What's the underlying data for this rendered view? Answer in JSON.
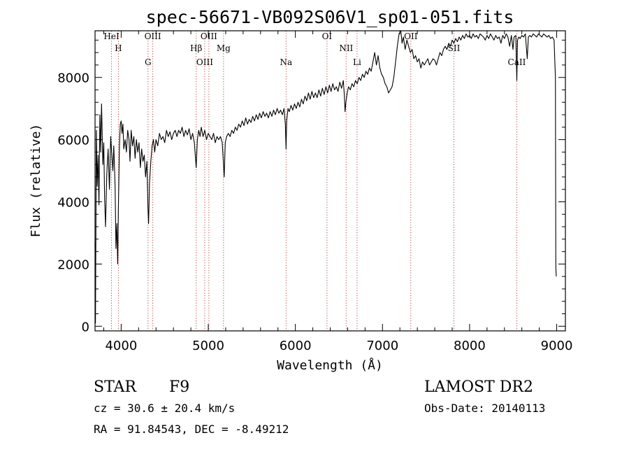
{
  "chart_data": {
    "type": "line",
    "title": "spec-56671-VB092S06V1_sp01-051.fits",
    "xlabel": "Wavelength (Å)",
    "ylabel": "Flux (relative)",
    "xlim": [
      3700,
      9100
    ],
    "ylim": [
      -150,
      9500
    ],
    "xticks": [
      4000,
      5000,
      6000,
      7000,
      8000,
      9000
    ],
    "yticks": [
      0,
      2000,
      4000,
      6000,
      8000
    ],
    "grid": false,
    "series": [
      {
        "points": [
          [
            3700,
            2700
          ],
          [
            3705,
            100
          ],
          [
            3715,
            6300
          ],
          [
            3725,
            4500
          ],
          [
            3735,
            5500
          ],
          [
            3745,
            3900
          ],
          [
            3755,
            6800
          ],
          [
            3765,
            5600
          ],
          [
            3775,
            7150
          ],
          [
            3790,
            5200
          ],
          [
            3800,
            5900
          ],
          [
            3810,
            4100
          ],
          [
            3820,
            3200
          ],
          [
            3835,
            4900
          ],
          [
            3850,
            5700
          ],
          [
            3865,
            4400
          ],
          [
            3880,
            6100
          ],
          [
            3895,
            5400
          ],
          [
            3905,
            5000
          ],
          [
            3915,
            5800
          ],
          [
            3930,
            4500
          ],
          [
            3940,
            2500
          ],
          [
            3950,
            3300
          ],
          [
            3960,
            2000
          ],
          [
            3968,
            3800
          ],
          [
            3980,
            5800
          ],
          [
            3990,
            6500
          ],
          [
            4000,
            6600
          ],
          [
            4010,
            6200
          ],
          [
            4020,
            6500
          ],
          [
            4030,
            5700
          ],
          [
            4045,
            6000
          ],
          [
            4060,
            5600
          ],
          [
            4075,
            6300
          ],
          [
            4090,
            6000
          ],
          [
            4101,
            5300
          ],
          [
            4115,
            6300
          ],
          [
            4130,
            5800
          ],
          [
            4145,
            6100
          ],
          [
            4160,
            5400
          ],
          [
            4175,
            6000
          ],
          [
            4190,
            5600
          ],
          [
            4205,
            5900
          ],
          [
            4220,
            5100
          ],
          [
            4235,
            5700
          ],
          [
            4250,
            5300
          ],
          [
            4265,
            5500
          ],
          [
            4280,
            4800
          ],
          [
            4295,
            5300
          ],
          [
            4307,
            3800
          ],
          [
            4315,
            3300
          ],
          [
            4325,
            4600
          ],
          [
            4340,
            5300
          ],
          [
            4355,
            5800
          ],
          [
            4370,
            6000
          ],
          [
            4385,
            5600
          ],
          [
            4400,
            6000
          ],
          [
            4420,
            5800
          ],
          [
            4440,
            6200
          ],
          [
            4460,
            6000
          ],
          [
            4480,
            6100
          ],
          [
            4500,
            5900
          ],
          [
            4520,
            6300
          ],
          [
            4540,
            6100
          ],
          [
            4560,
            6250
          ],
          [
            4580,
            6000
          ],
          [
            4600,
            6200
          ],
          [
            4620,
            6300
          ],
          [
            4640,
            6100
          ],
          [
            4660,
            6300
          ],
          [
            4680,
            6200
          ],
          [
            4700,
            6400
          ],
          [
            4720,
            6100
          ],
          [
            4740,
            6300
          ],
          [
            4760,
            6150
          ],
          [
            4780,
            6350
          ],
          [
            4800,
            6000
          ],
          [
            4820,
            6200
          ],
          [
            4840,
            5900
          ],
          [
            4861,
            5100
          ],
          [
            4875,
            6000
          ],
          [
            4890,
            6300
          ],
          [
            4905,
            6100
          ],
          [
            4920,
            6400
          ],
          [
            4940,
            6100
          ],
          [
            4960,
            6300
          ],
          [
            4980,
            6000
          ],
          [
            5000,
            6200
          ],
          [
            5020,
            6100
          ],
          [
            5040,
            6000
          ],
          [
            5060,
            6200
          ],
          [
            5080,
            5900
          ],
          [
            5100,
            6100
          ],
          [
            5120,
            6000
          ],
          [
            5140,
            6100
          ],
          [
            5160,
            5900
          ],
          [
            5175,
            5200
          ],
          [
            5183,
            4800
          ],
          [
            5195,
            5900
          ],
          [
            5210,
            6100
          ],
          [
            5230,
            6200
          ],
          [
            5250,
            6100
          ],
          [
            5270,
            6300
          ],
          [
            5290,
            6200
          ],
          [
            5310,
            6400
          ],
          [
            5330,
            6300
          ],
          [
            5350,
            6500
          ],
          [
            5370,
            6400
          ],
          [
            5390,
            6600
          ],
          [
            5410,
            6450
          ],
          [
            5430,
            6700
          ],
          [
            5450,
            6500
          ],
          [
            5470,
            6650
          ],
          [
            5490,
            6550
          ],
          [
            5510,
            6750
          ],
          [
            5530,
            6600
          ],
          [
            5550,
            6800
          ],
          [
            5570,
            6650
          ],
          [
            5590,
            6850
          ],
          [
            5610,
            6700
          ],
          [
            5630,
            6900
          ],
          [
            5650,
            6750
          ],
          [
            5670,
            6850
          ],
          [
            5690,
            6700
          ],
          [
            5710,
            6900
          ],
          [
            5730,
            6750
          ],
          [
            5750,
            6950
          ],
          [
            5770,
            6800
          ],
          [
            5790,
            7000
          ],
          [
            5810,
            6850
          ],
          [
            5830,
            6950
          ],
          [
            5850,
            6800
          ],
          [
            5870,
            7000
          ],
          [
            5885,
            6500
          ],
          [
            5893,
            5700
          ],
          [
            5900,
            6600
          ],
          [
            5915,
            7000
          ],
          [
            5930,
            6900
          ],
          [
            5950,
            7100
          ],
          [
            5970,
            6950
          ],
          [
            5990,
            7150
          ],
          [
            6010,
            7000
          ],
          [
            6030,
            7200
          ],
          [
            6050,
            7050
          ],
          [
            6070,
            7300
          ],
          [
            6090,
            7150
          ],
          [
            6110,
            7400
          ],
          [
            6130,
            7250
          ],
          [
            6150,
            7500
          ],
          [
            6170,
            7300
          ],
          [
            6190,
            7550
          ],
          [
            6210,
            7350
          ],
          [
            6230,
            7500
          ],
          [
            6250,
            7350
          ],
          [
            6270,
            7600
          ],
          [
            6290,
            7400
          ],
          [
            6310,
            7650
          ],
          [
            6330,
            7450
          ],
          [
            6350,
            7700
          ],
          [
            6370,
            7500
          ],
          [
            6390,
            7750
          ],
          [
            6410,
            7550
          ],
          [
            6430,
            7800
          ],
          [
            6450,
            7600
          ],
          [
            6470,
            7700
          ],
          [
            6490,
            7550
          ],
          [
            6510,
            7850
          ],
          [
            6530,
            7650
          ],
          [
            6550,
            7900
          ],
          [
            6563,
            7400
          ],
          [
            6570,
            6900
          ],
          [
            6580,
            7200
          ],
          [
            6595,
            7500
          ],
          [
            6610,
            7700
          ],
          [
            6630,
            7600
          ],
          [
            6650,
            7800
          ],
          [
            6670,
            7700
          ],
          [
            6690,
            7900
          ],
          [
            6710,
            7800
          ],
          [
            6730,
            8000
          ],
          [
            6750,
            7900
          ],
          [
            6770,
            8100
          ],
          [
            6790,
            8000
          ],
          [
            6810,
            8200
          ],
          [
            6830,
            8100
          ],
          [
            6850,
            8300
          ],
          [
            6870,
            8200
          ],
          [
            6890,
            8500
          ],
          [
            6910,
            8800
          ],
          [
            6930,
            8400
          ],
          [
            6950,
            8700
          ],
          [
            6970,
            8300
          ],
          [
            6990,
            8100
          ],
          [
            7010,
            8000
          ],
          [
            7030,
            7800
          ],
          [
            7050,
            7700
          ],
          [
            7070,
            7500
          ],
          [
            7090,
            7600
          ],
          [
            7110,
            7700
          ],
          [
            7130,
            8000
          ],
          [
            7150,
            8500
          ],
          [
            7170,
            9000
          ],
          [
            7190,
            9400
          ],
          [
            7210,
            9500
          ],
          [
            7225,
            9100
          ],
          [
            7240,
            9300
          ],
          [
            7260,
            8900
          ],
          [
            7280,
            9200
          ],
          [
            7300,
            9000
          ],
          [
            7320,
            8800
          ],
          [
            7340,
            8900
          ],
          [
            7360,
            8600
          ],
          [
            7380,
            8700
          ],
          [
            7400,
            8500
          ],
          [
            7420,
            8600
          ],
          [
            7440,
            8300
          ],
          [
            7460,
            8500
          ],
          [
            7480,
            8400
          ],
          [
            7500,
            8500
          ],
          [
            7520,
            8600
          ],
          [
            7540,
            8400
          ],
          [
            7560,
            8500
          ],
          [
            7580,
            8600
          ],
          [
            7600,
            8550
          ],
          [
            7620,
            8400
          ],
          [
            7640,
            8600
          ],
          [
            7660,
            8800
          ],
          [
            7680,
            8700
          ],
          [
            7700,
            8900
          ],
          [
            7720,
            9000
          ],
          [
            7740,
            8900
          ],
          [
            7760,
            9100
          ],
          [
            7780,
            9000
          ],
          [
            7800,
            9200
          ],
          [
            7820,
            9100
          ],
          [
            7840,
            9250
          ],
          [
            7860,
            9150
          ],
          [
            7880,
            9300
          ],
          [
            7900,
            9200
          ],
          [
            7920,
            9350
          ],
          [
            7940,
            9250
          ],
          [
            7960,
            9400
          ],
          [
            7980,
            9300
          ],
          [
            8000,
            9350
          ],
          [
            8020,
            9250
          ],
          [
            8040,
            9400
          ],
          [
            8060,
            9300
          ],
          [
            8080,
            9350
          ],
          [
            8100,
            9250
          ],
          [
            8120,
            9400
          ],
          [
            8140,
            9350
          ],
          [
            8160,
            9300
          ],
          [
            8180,
            9200
          ],
          [
            8200,
            9350
          ],
          [
            8220,
            9250
          ],
          [
            8240,
            9400
          ],
          [
            8260,
            9300
          ],
          [
            8280,
            9200
          ],
          [
            8300,
            9350
          ],
          [
            8320,
            9250
          ],
          [
            8340,
            9300
          ],
          [
            8360,
            9100
          ],
          [
            8380,
            9350
          ],
          [
            8400,
            9250
          ],
          [
            8420,
            9400
          ],
          [
            8440,
            9300
          ],
          [
            8460,
            9000
          ],
          [
            8480,
            9350
          ],
          [
            8498,
            8900
          ],
          [
            8510,
            9300
          ],
          [
            8530,
            9350
          ],
          [
            8542,
            7900
          ],
          [
            8550,
            9200
          ],
          [
            8565,
            9300
          ],
          [
            8580,
            9250
          ],
          [
            8600,
            9350
          ],
          [
            8620,
            9300
          ],
          [
            8640,
            9400
          ],
          [
            8662,
            8600
          ],
          [
            8675,
            9300
          ],
          [
            8690,
            9350
          ],
          [
            8710,
            9300
          ],
          [
            8730,
            9400
          ],
          [
            8750,
            9350
          ],
          [
            8770,
            9300
          ],
          [
            8790,
            9400
          ],
          [
            8810,
            9350
          ],
          [
            8830,
            9300
          ],
          [
            8850,
            9400
          ],
          [
            8870,
            9350
          ],
          [
            8890,
            9300
          ],
          [
            8910,
            9350
          ],
          [
            8930,
            9250
          ],
          [
            8950,
            9300
          ],
          [
            8970,
            9200
          ],
          [
            8985,
            8000
          ],
          [
            8990,
            1900
          ],
          [
            8995,
            1600
          ]
        ]
      }
    ],
    "line_markers": [
      {
        "name": "HeI",
        "x": 3889
      },
      {
        "name": "H",
        "x": 3968
      },
      {
        "name": "G",
        "x": 4308
      },
      {
        "name": "OIII",
        "x": 4363
      },
      {
        "name": "Hβ",
        "x": 4861
      },
      {
        "name": "OIII",
        "x": 4959
      },
      {
        "name": "OIII",
        "x": 5007
      },
      {
        "name": "Mg",
        "x": 5175
      },
      {
        "name": "Na",
        "x": 5893
      },
      {
        "name": "OI",
        "x": 6363
      },
      {
        "name": "NII",
        "x": 6583
      },
      {
        "name": "Li",
        "x": 6708
      },
      {
        "name": "OII",
        "x": 7325
      },
      {
        "name": "SII",
        "x": 7820
      },
      {
        "name": "CaII",
        "x": 8542
      }
    ]
  },
  "info": {
    "object_class": "STAR",
    "subclass": "F9",
    "survey": "LAMOST DR2",
    "redshift": "cz = 30.6 ± 20.4 km/s",
    "obs_date": "Obs-Date: 20140113",
    "coords": "RA =  91.84543, DEC =  -8.49212"
  }
}
